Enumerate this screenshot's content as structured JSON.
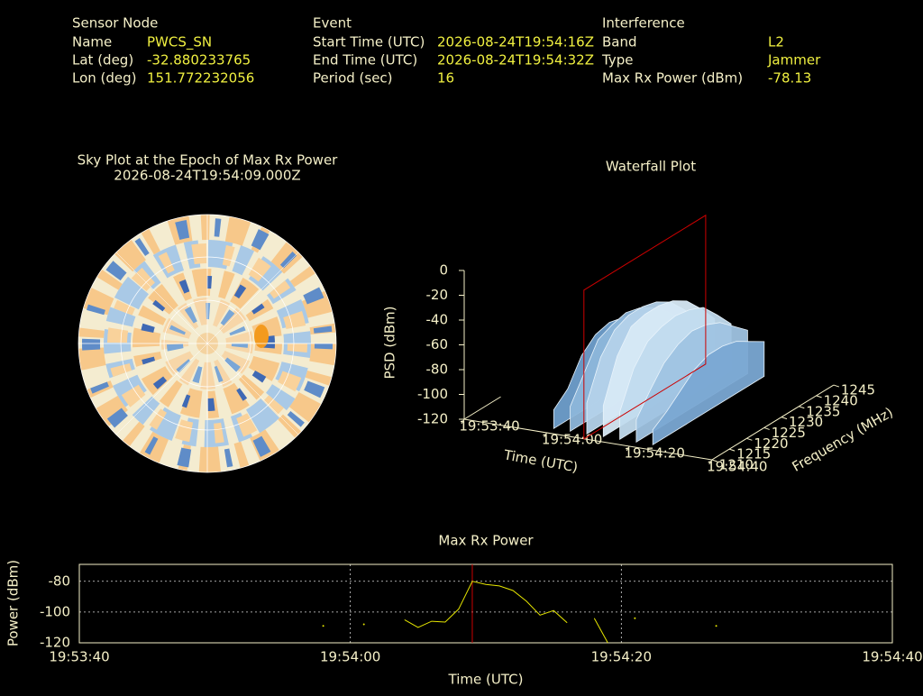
{
  "info": {
    "sensor": {
      "title": "Sensor Node",
      "rows": [
        [
          "Name",
          "PWCS_SN"
        ],
        [
          "Lat (deg)",
          "-32.880233765"
        ],
        [
          "Lon (deg)",
          "151.772232056"
        ]
      ]
    },
    "event": {
      "title": "Event",
      "rows": [
        [
          "Start Time (UTC)",
          "2026-08-24T19:54:16Z"
        ],
        [
          "End Time (UTC)",
          "2026-08-24T19:54:32Z"
        ],
        [
          "Period (sec)",
          "16"
        ]
      ]
    },
    "interference": {
      "title": "Interference",
      "rows": [
        [
          "Band",
          "L2"
        ],
        [
          "Type",
          "Jammer"
        ],
        [
          "Max Rx Power (dBm)",
          "-78.13"
        ]
      ]
    }
  },
  "chart_data": [
    {
      "type": "polar-heatmap",
      "title": "Sky Plot at the Epoch of Max Rx Power",
      "subtitle": "2026-08-24T19:54:09.000Z"
    },
    {
      "type": "surface3d",
      "title": "Waterfall Plot",
      "xlabel": "Time (UTC)",
      "ylabel": "Frequency (MHz)",
      "zlabel": "PSD (dBm)",
      "xlim": [
        0,
        60
      ],
      "xticks": [
        {
          "value": 0,
          "label": "19:53:40"
        },
        {
          "value": 20,
          "label": "19:54:00"
        },
        {
          "value": 40,
          "label": "19:54:20"
        },
        {
          "value": 60,
          "label": "19:54:40"
        }
      ],
      "ylim": [
        1210,
        1245
      ],
      "yticks": [
        1210,
        1215,
        1220,
        1225,
        1230,
        1235,
        1240,
        1245
      ],
      "zlim": [
        -120,
        0
      ],
      "zticks": [
        0,
        -20,
        -40,
        -60,
        -80,
        -100,
        -120
      ],
      "marker_x": 29,
      "marker_color": "#cc0000",
      "color": "#cfe6f5",
      "times": [
        20,
        24,
        28,
        32,
        36,
        40,
        44
      ],
      "frequencies": [
        1212,
        1216,
        1220,
        1224,
        1228,
        1232,
        1236,
        1240,
        1244
      ],
      "values": [
        [
          -105,
          -95,
          -75,
          -65,
          -62,
          -65,
          -70,
          -80,
          -88
        ],
        [
          -100,
          -80,
          -60,
          -55,
          -52,
          -55,
          -62,
          -72,
          -85
        ],
        [
          -95,
          -65,
          -50,
          -45,
          -45,
          -48,
          -55,
          -68,
          -82
        ],
        [
          -95,
          -62,
          -45,
          -42,
          -42,
          -45,
          -52,
          -65,
          -80
        ],
        [
          -98,
          -70,
          -55,
          -50,
          -48,
          -50,
          -55,
          -68,
          -82
        ],
        [
          -102,
          -85,
          -70,
          -62,
          -58,
          -60,
          -65,
          -75,
          -85
        ],
        [
          -108,
          -100,
          -90,
          -80,
          -75,
          -75,
          -78,
          -85,
          -92
        ]
      ]
    },
    {
      "type": "line",
      "title": "Max Rx Power",
      "xlabel": "Time (UTC)",
      "ylabel": "Power (dBm)",
      "xlim": [
        0,
        60
      ],
      "xticks": [
        {
          "value": 0,
          "label": "19:53:40"
        },
        {
          "value": 20,
          "label": "19:54:00"
        },
        {
          "value": 40,
          "label": "19:54:20"
        },
        {
          "value": 60,
          "label": "19:54:40"
        }
      ],
      "ylim": [
        -120,
        -69
      ],
      "yticks": [
        -80,
        -100,
        -120
      ],
      "grid": true,
      "marker_x": 29,
      "marker_color": "#cc0000",
      "color": "#e6e600",
      "x": [
        18,
        19,
        20,
        21,
        22,
        23,
        24,
        25,
        26,
        27,
        28,
        29,
        30,
        31,
        32,
        33,
        34,
        35,
        36,
        37,
        38,
        39,
        40,
        41,
        42,
        43,
        44,
        45,
        46,
        47
      ],
      "values": [
        -109,
        null,
        null,
        -108,
        null,
        null,
        -105,
        -110,
        -106,
        -106.5,
        -98,
        -80,
        -82,
        -83,
        -86,
        -93,
        -102,
        -99,
        -107,
        null,
        -104,
        -120,
        null,
        -104,
        null,
        null,
        null,
        null,
        null,
        -109
      ]
    }
  ]
}
